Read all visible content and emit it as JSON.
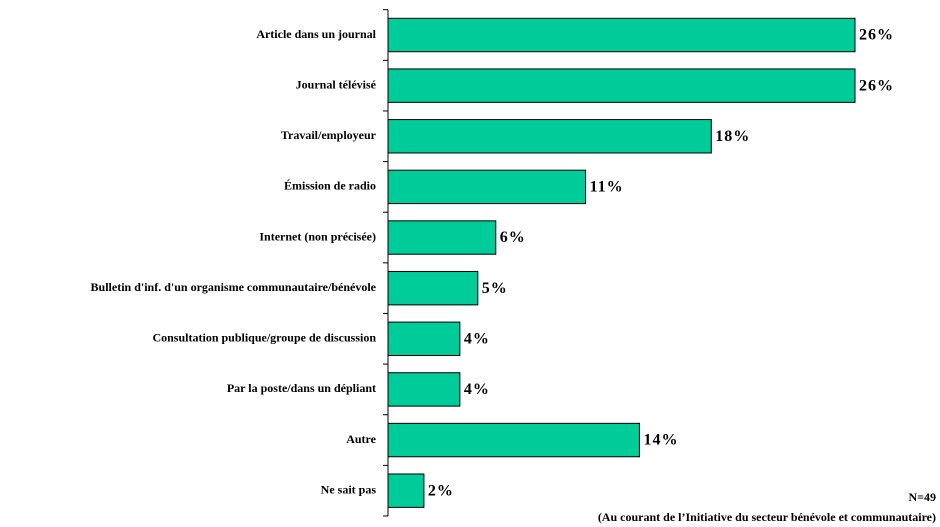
{
  "chart_data": {
    "type": "bar",
    "orientation": "horizontal",
    "categories": [
      "Article dans un journal",
      "Journal télévisé",
      "Travail/employeur",
      "Émission de radio",
      "Internet (non précisée)",
      "Bulletin d'inf. d'un organisme communautaire/bénévole",
      "Consultation publique/groupe de discussion",
      "Par la poste/dans un dépliant",
      "Autre",
      "Ne sait pas"
    ],
    "values": [
      26,
      26,
      18,
      11,
      6,
      5,
      4,
      4,
      14,
      2
    ],
    "value_labels": [
      "26%",
      "26%",
      "18%",
      "11%",
      "6%",
      "5%",
      "4%",
      "4%",
      "14%",
      "2%"
    ],
    "color": "#00cc99",
    "annotations": [
      "N=49",
      "(Au courant de l’Initiative du secteur bénévole et communautaire)"
    ]
  }
}
